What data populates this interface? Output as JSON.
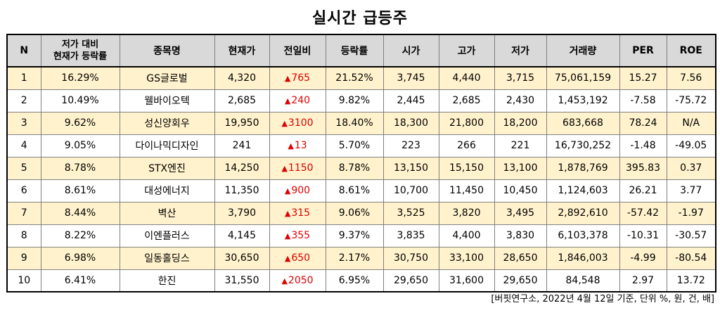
{
  "title": "실시간 급등주",
  "headers": {
    "n": "N",
    "ratio_line1": "저가 대비",
    "ratio_line2": "현재가 등락률",
    "name": "종목명",
    "price": "현재가",
    "change": "전일비",
    "rate": "등락률",
    "open": "시가",
    "high": "고가",
    "low": "저가",
    "volume": "거래량",
    "per": "PER",
    "roe": "ROE"
  },
  "up_arrow": "▲",
  "colors": {
    "header_bg": "#d9d9d9",
    "odd_row_bg": "#fff2cc",
    "up_color": "#e00000"
  },
  "rows": [
    {
      "n": "1",
      "ratio": "16.29%",
      "name": "GS글로벌",
      "price": "4,320",
      "change": "765",
      "rate": "21.52%",
      "open": "3,745",
      "high": "4,440",
      "low": "3,715",
      "volume": "75,061,159",
      "per": "15.27",
      "roe": "7.56"
    },
    {
      "n": "2",
      "ratio": "10.49%",
      "name": "웰바이오텍",
      "price": "2,685",
      "change": "240",
      "rate": "9.82%",
      "open": "2,445",
      "high": "2,685",
      "low": "2,430",
      "volume": "1,453,192",
      "per": "-7.58",
      "roe": "-75.72"
    },
    {
      "n": "3",
      "ratio": "9.62%",
      "name": "성신양회우",
      "price": "19,950",
      "change": "3100",
      "rate": "18.40%",
      "open": "18,300",
      "high": "21,800",
      "low": "18,200",
      "volume": "683,668",
      "per": "78.24",
      "roe": "N/A"
    },
    {
      "n": "4",
      "ratio": "9.05%",
      "name": "다이나믹디자인",
      "price": "241",
      "change": "13",
      "rate": "5.70%",
      "open": "223",
      "high": "266",
      "low": "221",
      "volume": "16,730,252",
      "per": "-1.48",
      "roe": "-49.05"
    },
    {
      "n": "5",
      "ratio": "8.78%",
      "name": "STX엔진",
      "price": "14,250",
      "change": "1150",
      "rate": "8.78%",
      "open": "13,150",
      "high": "15,150",
      "low": "13,100",
      "volume": "1,878,769",
      "per": "395.83",
      "roe": "0.37"
    },
    {
      "n": "6",
      "ratio": "8.61%",
      "name": "대성에너지",
      "price": "11,350",
      "change": "900",
      "rate": "8.61%",
      "open": "10,700",
      "high": "11,450",
      "low": "10,450",
      "volume": "1,124,603",
      "per": "26.21",
      "roe": "3.77"
    },
    {
      "n": "7",
      "ratio": "8.44%",
      "name": "벽산",
      "price": "3,790",
      "change": "315",
      "rate": "9.06%",
      "open": "3,525",
      "high": "3,820",
      "low": "3,495",
      "volume": "2,892,610",
      "per": "-57.42",
      "roe": "-1.97"
    },
    {
      "n": "8",
      "ratio": "8.22%",
      "name": "이엔플러스",
      "price": "4,145",
      "change": "355",
      "rate": "9.37%",
      "open": "3,835",
      "high": "4,400",
      "low": "3,830",
      "volume": "6,103,378",
      "per": "-10.31",
      "roe": "-30.57"
    },
    {
      "n": "9",
      "ratio": "6.98%",
      "name": "일동홀딩스",
      "price": "30,650",
      "change": "650",
      "rate": "2.17%",
      "open": "30,750",
      "high": "33,100",
      "low": "28,650",
      "volume": "1,846,003",
      "per": "-4.99",
      "roe": "-80.54"
    },
    {
      "n": "10",
      "ratio": "6.41%",
      "name": "한진",
      "price": "31,550",
      "change": "2050",
      "rate": "6.95%",
      "open": "29,650",
      "high": "31,600",
      "low": "29,650",
      "volume": "84,548",
      "per": "2.97",
      "roe": "13.72"
    }
  ],
  "footnote": "[버핏연구소, 2022년 4월 12일 기준, 단위 %, 원, 건, 배]"
}
